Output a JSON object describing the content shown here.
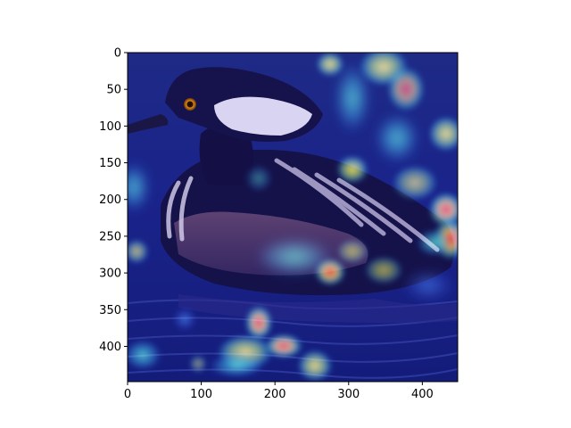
{
  "figure": {
    "image_subject": "hooded merganser with jet colormap saliency overlay",
    "colormap": "jet",
    "x_axis": {
      "range": [
        0,
        448
      ],
      "ticks": [
        0,
        100,
        200,
        300,
        400
      ]
    },
    "y_axis": {
      "range": [
        0,
        448
      ],
      "ticks": [
        0,
        50,
        100,
        150,
        200,
        250,
        300,
        350,
        400
      ],
      "inverted": true
    },
    "colors": {
      "background": "#ffffff",
      "axis": "#000000",
      "overlay_low": "#10109a",
      "overlay_mid": "#34d8f0",
      "overlay_high": "#ff3a10",
      "overlay_peak": "#ffe030"
    }
  }
}
